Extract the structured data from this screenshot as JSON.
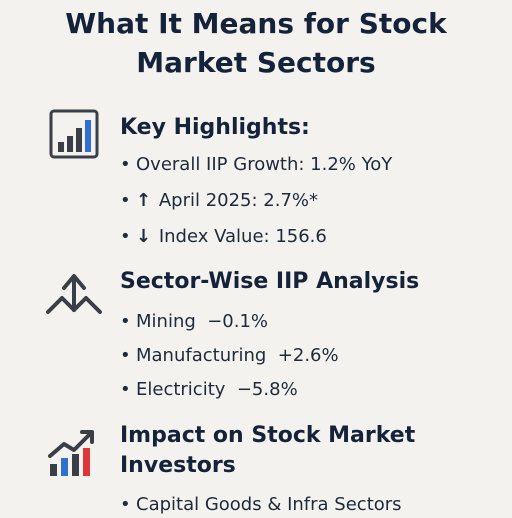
{
  "title_line1": "What It Means for Stock",
  "title_line2": "Market Sectors",
  "bullet_glyph": "•",
  "sections": [
    {
      "heading": "Key Highlights:",
      "icon": "bar-chart-icon",
      "items": [
        {
          "prefix": "",
          "text": "Overall IIP Growth: 1.2% YoY"
        },
        {
          "prefix": "↑",
          "text": "April 2025: 2.7%*"
        },
        {
          "prefix": "↓",
          "text": "Index Value: 156.6"
        }
      ]
    },
    {
      "heading": "Sector-Wise IIP Analysis",
      "icon": "up-down-arrows-icon",
      "items": [
        {
          "prefix": "",
          "text": "Mining  −0.1%"
        },
        {
          "prefix": "",
          "text": "Manufacturing  +2.6%"
        },
        {
          "prefix": "",
          "text": "Electricity  −5.8%"
        }
      ]
    },
    {
      "heading_line1": "Impact on Stock Market",
      "heading_line2": "Investors",
      "icon": "growth-chart-arrow-icon",
      "items": [
        {
          "prefix": "",
          "text": "Capital Goods & Infra Sectors"
        }
      ]
    }
  ],
  "colors": {
    "background": "#f4f2ef",
    "text": "#15233a",
    "accent_blue": "#2f6fd0",
    "accent_red": "#e0353b"
  }
}
